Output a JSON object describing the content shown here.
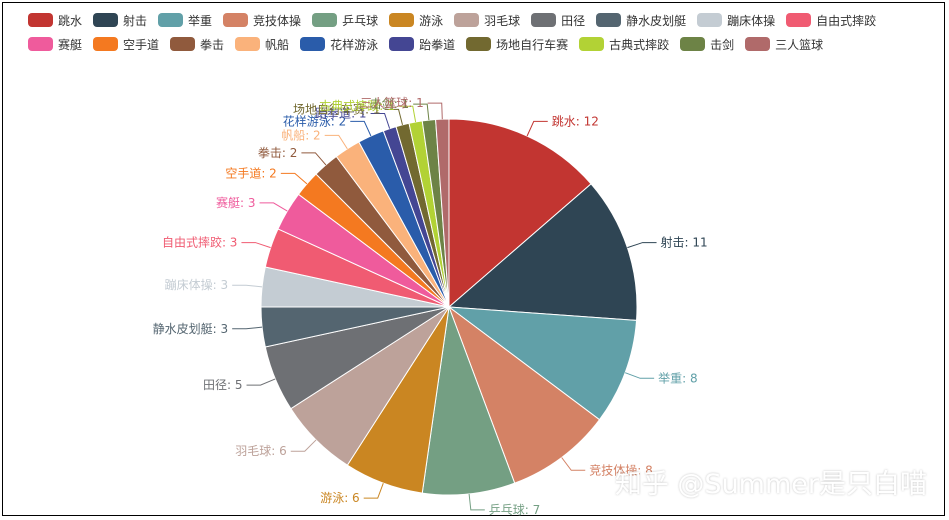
{
  "chart_data": {
    "type": "pie",
    "series": [
      {
        "name": "跳水",
        "value": 12,
        "color": "#c23531"
      },
      {
        "name": "射击",
        "value": 11,
        "color": "#2f4554"
      },
      {
        "name": "举重",
        "value": 8,
        "color": "#61a0a8"
      },
      {
        "name": "竞技体操",
        "value": 8,
        "color": "#d48265"
      },
      {
        "name": "乒乓球",
        "value": 7,
        "color": "#749f83"
      },
      {
        "name": "游泳",
        "value": 6,
        "color": "#ca8622"
      },
      {
        "name": "羽毛球",
        "value": 6,
        "color": "#bda29a"
      },
      {
        "name": "田径",
        "value": 5,
        "color": "#6e7074"
      },
      {
        "name": "静水皮划艇",
        "value": 3,
        "color": "#546570"
      },
      {
        "name": "蹦床体操",
        "value": 3,
        "color": "#c4ccd3"
      },
      {
        "name": "自由式摔跤",
        "value": 3,
        "color": "#f05b72"
      },
      {
        "name": "赛艇",
        "value": 3,
        "color": "#ef5b9c"
      },
      {
        "name": "空手道",
        "value": 2,
        "color": "#f47920"
      },
      {
        "name": "拳击",
        "value": 2,
        "color": "#905a3d"
      },
      {
        "name": "帆船",
        "value": 2,
        "color": "#fab27b"
      },
      {
        "name": "花样游泳",
        "value": 2,
        "color": "#2a5caa"
      },
      {
        "name": "跆拳道",
        "value": 1,
        "color": "#444693"
      },
      {
        "name": "场地自行车赛",
        "value": 1,
        "color": "#726930"
      },
      {
        "name": "古典式摔跤",
        "value": 1,
        "color": "#b2d235"
      },
      {
        "name": "击剑",
        "value": 1,
        "color": "#6d8346"
      },
      {
        "name": "三人篮球",
        "value": 1,
        "color": "#b7704f"
      }
    ],
    "legend_position": "top"
  },
  "watermark": "知乎 @Summer是只白喵"
}
